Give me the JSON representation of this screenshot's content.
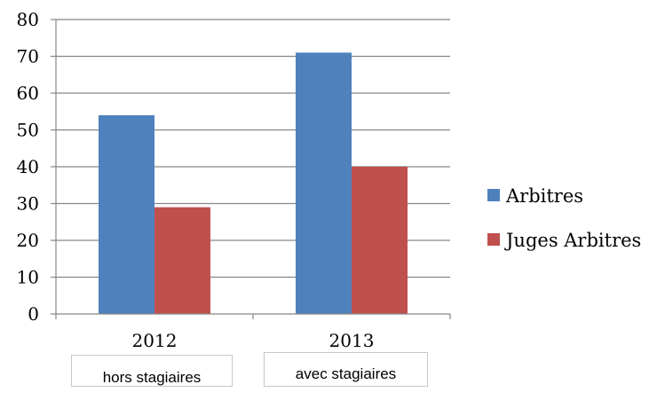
{
  "chart_data": {
    "type": "bar",
    "categories": [
      "2012",
      "2013"
    ],
    "series": [
      {
        "name": "Arbitres",
        "values": [
          54,
          71
        ],
        "color": "#4f81bd"
      },
      {
        "name": "Juges Arbitres",
        "values": [
          29,
          40
        ],
        "color": "#c0504d"
      }
    ],
    "ylim": [
      0,
      80
    ],
    "yticks": [
      0,
      10,
      20,
      30,
      40,
      50,
      60,
      70,
      80
    ],
    "grid": true,
    "legend_position": "right",
    "annotations": [
      "hors stagiaires",
      "avec stagiaires"
    ]
  }
}
